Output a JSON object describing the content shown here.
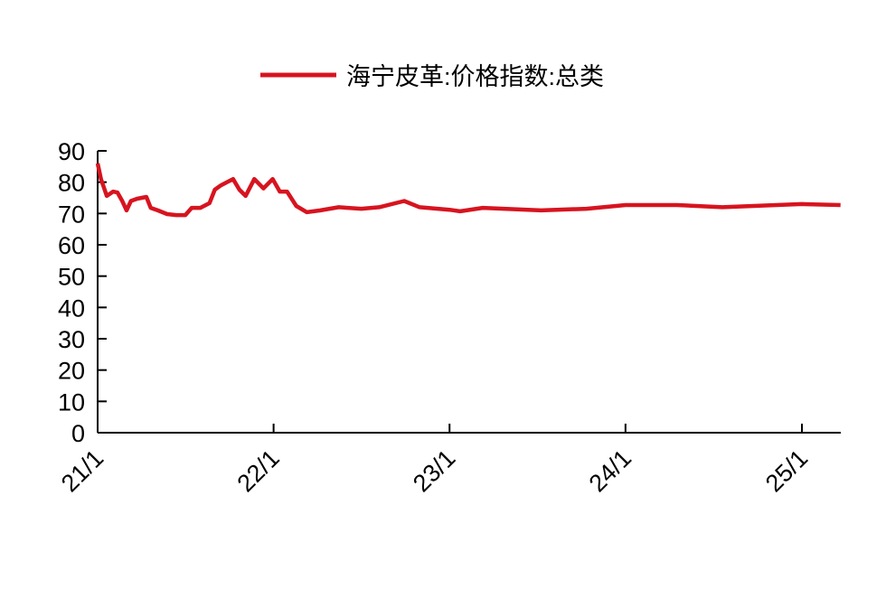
{
  "chart_data": {
    "type": "line",
    "title": "",
    "xlabel": "",
    "ylabel": "",
    "ylim": [
      0,
      90
    ],
    "yticks": [
      0,
      10,
      20,
      30,
      40,
      50,
      60,
      70,
      80,
      90
    ],
    "xlim": [
      "2021-01-01",
      "2025-03-22"
    ],
    "xticks": [
      {
        "date": "2021-01-01",
        "label": "21/1"
      },
      {
        "date": "2022-01-01",
        "label": "22/1"
      },
      {
        "date": "2023-01-01",
        "label": "23/1"
      },
      {
        "date": "2024-01-01",
        "label": "24/1"
      },
      {
        "date": "2025-01-01",
        "label": "25/1"
      }
    ],
    "grid": false,
    "legend_position": "top",
    "series": [
      {
        "name": "海宁皮革:价格指数:总类",
        "color": "#d7141f",
        "points": [
          [
            "2021-01-01",
            86
          ],
          [
            "2021-01-08",
            81
          ],
          [
            "2021-01-20",
            75.6
          ],
          [
            "2021-02-02",
            77
          ],
          [
            "2021-02-11",
            76.7
          ],
          [
            "2021-02-21",
            74
          ],
          [
            "2021-03-02",
            71
          ],
          [
            "2021-03-11",
            74
          ],
          [
            "2021-03-24",
            74.7
          ],
          [
            "2021-04-12",
            75.3
          ],
          [
            "2021-04-21",
            71.8
          ],
          [
            "2021-05-06",
            71
          ],
          [
            "2021-05-25",
            69.8
          ],
          [
            "2021-06-13",
            69.5
          ],
          [
            "2021-07-02",
            69.5
          ],
          [
            "2021-07-15",
            71.8
          ],
          [
            "2021-08-02",
            71.8
          ],
          [
            "2021-08-21",
            73.3
          ],
          [
            "2021-09-01",
            77.6
          ],
          [
            "2021-09-14",
            79
          ],
          [
            "2021-10-09",
            81
          ],
          [
            "2021-10-22",
            77.6
          ],
          [
            "2021-11-04",
            75.6
          ],
          [
            "2021-11-22",
            81
          ],
          [
            "2021-12-11",
            78
          ],
          [
            "2021-12-30",
            81
          ],
          [
            "2022-01-14",
            77
          ],
          [
            "2022-01-29",
            77
          ],
          [
            "2022-02-17",
            72.4
          ],
          [
            "2022-03-11",
            70.4
          ],
          [
            "2022-04-08",
            71
          ],
          [
            "2022-05-16",
            72
          ],
          [
            "2022-07-02",
            71.5
          ],
          [
            "2022-08-08",
            72
          ],
          [
            "2022-09-29",
            74
          ],
          [
            "2022-10-31",
            72
          ],
          [
            "2023-01-01",
            71.2
          ],
          [
            "2023-01-23",
            70.7
          ],
          [
            "2023-03-11",
            71.8
          ],
          [
            "2023-07-10",
            71
          ],
          [
            "2023-10-12",
            71.5
          ],
          [
            "2024-01-01",
            72.7
          ],
          [
            "2024-04-17",
            72.7
          ],
          [
            "2024-07-20",
            72
          ],
          [
            "2025-01-01",
            73
          ],
          [
            "2025-03-22",
            72.7
          ]
        ]
      }
    ]
  }
}
